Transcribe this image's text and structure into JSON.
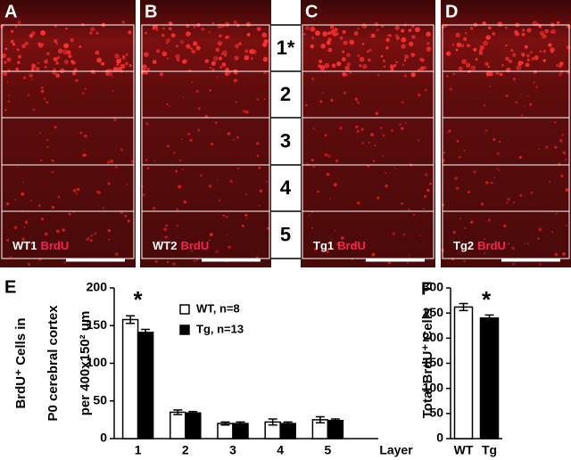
{
  "panels": [
    {
      "letter": "A",
      "label": "WT1",
      "stain": "BrdU"
    },
    {
      "letter": "B",
      "label": "WT2",
      "stain": "BrdU"
    },
    {
      "letter": "C",
      "label": "Tg1",
      "stain": "BrdU"
    },
    {
      "letter": "D",
      "label": "Tg2",
      "stain": "BrdU"
    }
  ],
  "layers": [
    "1*",
    "2",
    "3",
    "4",
    "5"
  ],
  "chart_data": [
    {
      "type": "bar",
      "panel": "E",
      "ylabel": [
        "BrdU⁺ Cells in",
        "P0 cerebral cortex",
        "per 400x150² um"
      ],
      "xlabel": "Layer",
      "annotation": "*",
      "categories": [
        "1",
        "2",
        "3",
        "4",
        "5"
      ],
      "series": [
        {
          "name": "WT, n=8",
          "color": "#ffffff",
          "values": [
            158,
            35,
            20,
            22,
            25
          ],
          "errors": [
            5,
            3,
            2,
            4,
            4
          ]
        },
        {
          "name": "Tg, n=13",
          "color": "#000000",
          "values": [
            141,
            34,
            20,
            20,
            24
          ],
          "errors": [
            4,
            2,
            2,
            2,
            2
          ]
        }
      ],
      "ylim": [
        0,
        200
      ],
      "yticks": [
        0,
        50,
        100,
        150,
        200
      ]
    },
    {
      "type": "bar",
      "panel": "F",
      "ylabel": [
        "Total BrdU⁺ Cells"
      ],
      "annotation": "*",
      "categories": [
        "WT",
        "Tg"
      ],
      "values": [
        262,
        240
      ],
      "errors": [
        7,
        6
      ],
      "colors": [
        "#ffffff",
        "#000000"
      ],
      "ylim": [
        0,
        300
      ],
      "yticks": [
        0,
        50,
        100,
        150,
        200,
        250,
        300
      ]
    }
  ]
}
